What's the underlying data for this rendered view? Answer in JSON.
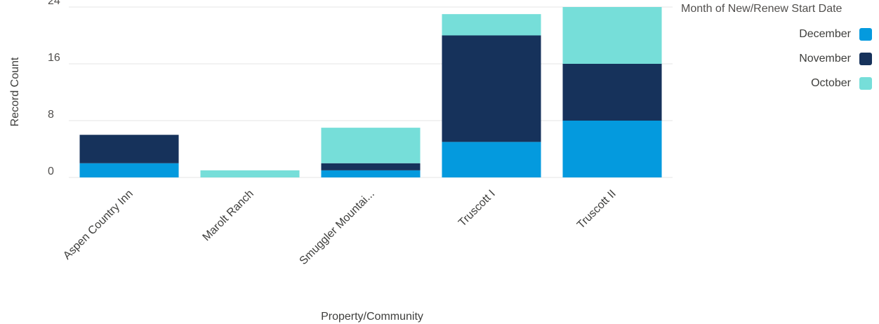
{
  "chart_data": {
    "type": "bar",
    "stacked": true,
    "categories": [
      "Aspen Country Inn",
      "Marolt Ranch",
      "Smuggler Mountai...",
      "Truscott I",
      "Truscott II"
    ],
    "series": [
      {
        "name": "December",
        "color": "#049ade",
        "values": [
          2,
          0,
          1,
          5,
          8
        ]
      },
      {
        "name": "November",
        "color": "#16325b",
        "values": [
          4,
          0,
          1,
          15,
          8
        ]
      },
      {
        "name": "October",
        "color": "#76ded9",
        "values": [
          0,
          1,
          5,
          3,
          8
        ]
      }
    ],
    "yticks": [
      0,
      8,
      16,
      24
    ],
    "ylim": [
      0,
      24
    ],
    "xlabel": "Property/Community",
    "ylabel": "Record Count",
    "legend": {
      "title": "Month of New/Renew Start Date",
      "position": "top-right"
    },
    "grid": true
  }
}
